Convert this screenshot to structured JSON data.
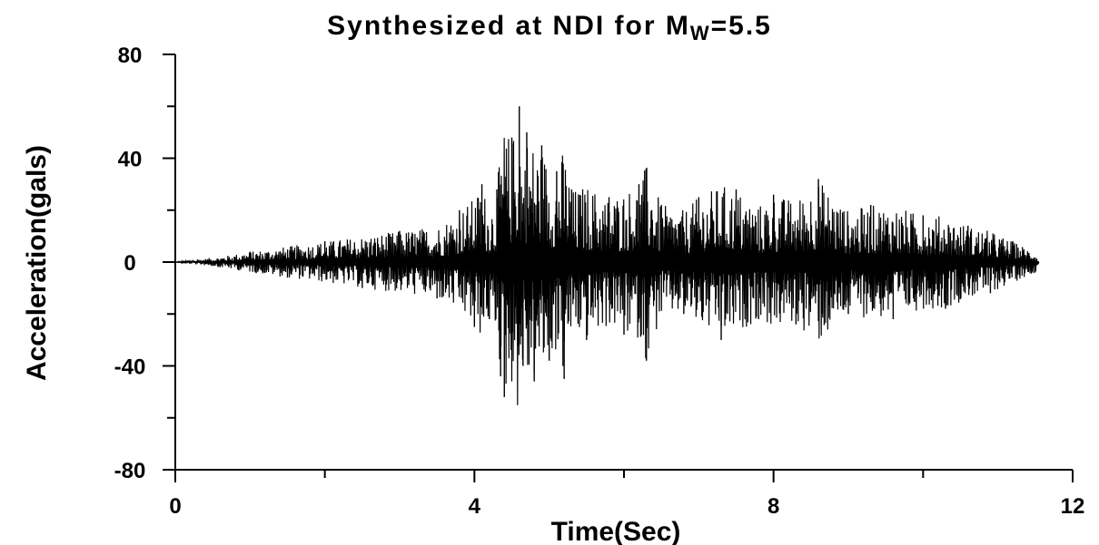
{
  "chart_data": {
    "type": "line",
    "title_main": "Synthesized at NDI for M",
    "title_subscript": "W",
    "title_suffix": "=5.5",
    "xlabel": "Time(Sec)",
    "ylabel": "Acceleration(gals)",
    "xlim": [
      0,
      12
    ],
    "ylim": [
      -80,
      80
    ],
    "x_ticks": [
      0,
      4,
      8,
      12
    ],
    "x_minor_ticks": [
      2,
      6,
      10
    ],
    "y_ticks": [
      80,
      40,
      0,
      -40,
      -80
    ],
    "y_minor_ticks": [
      60,
      20,
      -20,
      -60
    ],
    "grid": false,
    "line_color": "#000000",
    "series": [
      {
        "x": [
          0,
          0.3,
          0.6,
          1.0,
          1.5,
          2.0,
          2.5,
          3.0,
          3.5,
          3.8,
          4.0,
          4.1,
          4.2,
          4.3,
          4.35,
          4.4,
          4.5,
          4.6,
          4.65,
          4.7,
          4.8,
          4.9,
          5.0,
          5.1,
          5.2,
          5.3,
          5.5,
          5.8,
          6.0,
          6.2,
          6.3,
          6.5,
          6.8,
          7.0,
          7.3,
          7.5,
          7.8,
          8.0,
          8.3,
          8.6,
          9.0,
          9.3,
          9.6,
          10.0,
          10.3,
          10.6,
          10.9,
          11.2,
          11.5,
          11.55
        ],
        "y": [
          0,
          1,
          -2,
          4,
          -6,
          8,
          -10,
          12,
          -14,
          20,
          -25,
          30,
          -22,
          28,
          -44,
          -52,
          48,
          60,
          -40,
          50,
          -46,
          45,
          -38,
          35,
          -45,
          28,
          -30,
          25,
          -28,
          30,
          -38,
          22,
          -20,
          25,
          -30,
          28,
          -22,
          26,
          -24,
          32,
          -20,
          22,
          -22,
          18,
          -18,
          14,
          -12,
          8,
          -4,
          0
        ]
      }
    ]
  }
}
